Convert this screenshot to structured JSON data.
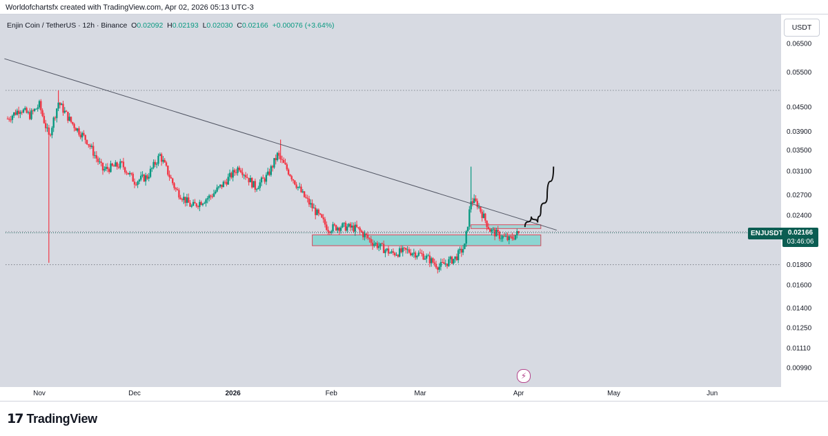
{
  "header": {
    "created_line": "Worldofchartsfx created with TradingView.com, Apr 02, 2026 05:13 UTC-3"
  },
  "legend": {
    "symbol": "Enjin Coin / TetherUS · 12h · Binance",
    "o_label": "O",
    "o_value": "0.02092",
    "h_label": "H",
    "h_value": "0.02193",
    "l_label": "L",
    "l_value": "0.02030",
    "c_label": "C",
    "c_value": "0.02166",
    "change": "+0.00076 (+3.64%)"
  },
  "currency_button": "USDT",
  "price_tag": {
    "ticker": "ENJUSDT",
    "price": "0.02166",
    "countdown": "03:46:06"
  },
  "footer": {
    "logo_mark": "17",
    "logo_text": "TradingView"
  },
  "colors": {
    "background": "#d7dae2",
    "up": "#089981",
    "down": "#f23645",
    "trendline": "#505462",
    "zone_fill": "#7fd3cf",
    "zone_border": "#d9485a",
    "projection": "#111111",
    "tag": "#0b5d52"
  },
  "icons": [
    "bolt-icon",
    "tradingview-logo-icon"
  ],
  "chart_data": {
    "type": "candlestick",
    "title": "Enjin Coin / TetherUS · 12h · Binance",
    "y_scale": "log",
    "y_ticks": [
      "0.06500",
      "0.05500",
      "0.04500",
      "0.03900",
      "0.03500",
      "0.03100",
      "0.02700",
      "0.02400",
      "0.01800",
      "0.01600",
      "0.01400",
      "0.01250",
      "0.01110",
      "0.00990"
    ],
    "x_ticks": [
      "Nov",
      "Dec",
      "2026",
      "Feb",
      "Mar",
      "Apr",
      "May",
      "Jun"
    ],
    "x_tick_dates": [
      "2025-11-01",
      "2025-12-01",
      "2026-01-01",
      "2026-02-01",
      "2026-03-01",
      "2026-04-01",
      "2026-05-01",
      "2026-06-01"
    ],
    "close_path": [
      {
        "date": "2025-10-22",
        "close": 0.042
      },
      {
        "date": "2025-10-26",
        "close": 0.0445
      },
      {
        "date": "2025-10-29",
        "close": 0.0428
      },
      {
        "date": "2025-11-01",
        "close": 0.0455
      },
      {
        "date": "2025-11-04",
        "close": 0.0378
      },
      {
        "date": "2025-11-07",
        "close": 0.0462
      },
      {
        "date": "2025-11-11",
        "close": 0.0412
      },
      {
        "date": "2025-11-16",
        "close": 0.037
      },
      {
        "date": "2025-11-21",
        "close": 0.0312
      },
      {
        "date": "2025-11-27",
        "close": 0.0322
      },
      {
        "date": "2025-12-01",
        "close": 0.0292
      },
      {
        "date": "2025-12-05",
        "close": 0.03
      },
      {
        "date": "2025-12-09",
        "close": 0.034
      },
      {
        "date": "2025-12-14",
        "close": 0.0278
      },
      {
        "date": "2025-12-19",
        "close": 0.0252
      },
      {
        "date": "2025-12-25",
        "close": 0.0268
      },
      {
        "date": "2025-12-29",
        "close": 0.0288
      },
      {
        "date": "2026-01-03",
        "close": 0.0318
      },
      {
        "date": "2026-01-08",
        "close": 0.0282
      },
      {
        "date": "2026-01-12",
        "close": 0.0302
      },
      {
        "date": "2026-01-15",
        "close": 0.034
      },
      {
        "date": "2026-01-19",
        "close": 0.0305
      },
      {
        "date": "2026-01-23",
        "close": 0.027
      },
      {
        "date": "2026-01-27",
        "close": 0.0245
      },
      {
        "date": "2026-01-31",
        "close": 0.0222
      },
      {
        "date": "2026-02-04",
        "close": 0.0225
      },
      {
        "date": "2026-02-09",
        "close": 0.0222
      },
      {
        "date": "2026-02-14",
        "close": 0.0205
      },
      {
        "date": "2026-02-20",
        "close": 0.0192
      },
      {
        "date": "2026-02-25",
        "close": 0.0195
      },
      {
        "date": "2026-03-02",
        "close": 0.019
      },
      {
        "date": "2026-03-07",
        "close": 0.0178
      },
      {
        "date": "2026-03-12",
        "close": 0.0187
      },
      {
        "date": "2026-03-15",
        "close": 0.02
      },
      {
        "date": "2026-03-17",
        "close": 0.0262
      },
      {
        "date": "2026-03-19",
        "close": 0.0256
      },
      {
        "date": "2026-03-23",
        "close": 0.022
      },
      {
        "date": "2026-03-26",
        "close": 0.0213
      },
      {
        "date": "2026-03-29",
        "close": 0.0208
      },
      {
        "date": "2026-04-01",
        "close": 0.02166
      }
    ],
    "spikes": [
      {
        "date": "2025-11-04",
        "low": 0.0182
      },
      {
        "date": "2025-11-07",
        "high": 0.0495
      },
      {
        "date": "2026-01-16",
        "high": 0.0372
      },
      {
        "date": "2026-03-17",
        "high": 0.0318
      }
    ],
    "trendline": [
      {
        "date": "2025-10-21",
        "price": 0.0595
      },
      {
        "date": "2026-04-13",
        "price": 0.022
      }
    ],
    "support_zone": {
      "from": "2026-01-26",
      "to": "2026-04-08",
      "low": 0.0201,
      "high": 0.0214
    },
    "resistance_zone": {
      "from": "2026-03-17",
      "to": "2026-04-08",
      "low": 0.0222,
      "high": 0.0227
    },
    "horizontal_lines": [
      0.0495,
      0.0218,
      0.018
    ],
    "projection_path": [
      {
        "date": "2026-04-03",
        "price": 0.0224
      },
      {
        "date": "2026-04-05",
        "price": 0.0238
      },
      {
        "date": "2026-04-07",
        "price": 0.023
      },
      {
        "date": "2026-04-08",
        "price": 0.0247
      },
      {
        "date": "2026-04-10",
        "price": 0.0268
      },
      {
        "date": "2026-04-12",
        "price": 0.0318
      }
    ],
    "last_price": 0.02166
  }
}
